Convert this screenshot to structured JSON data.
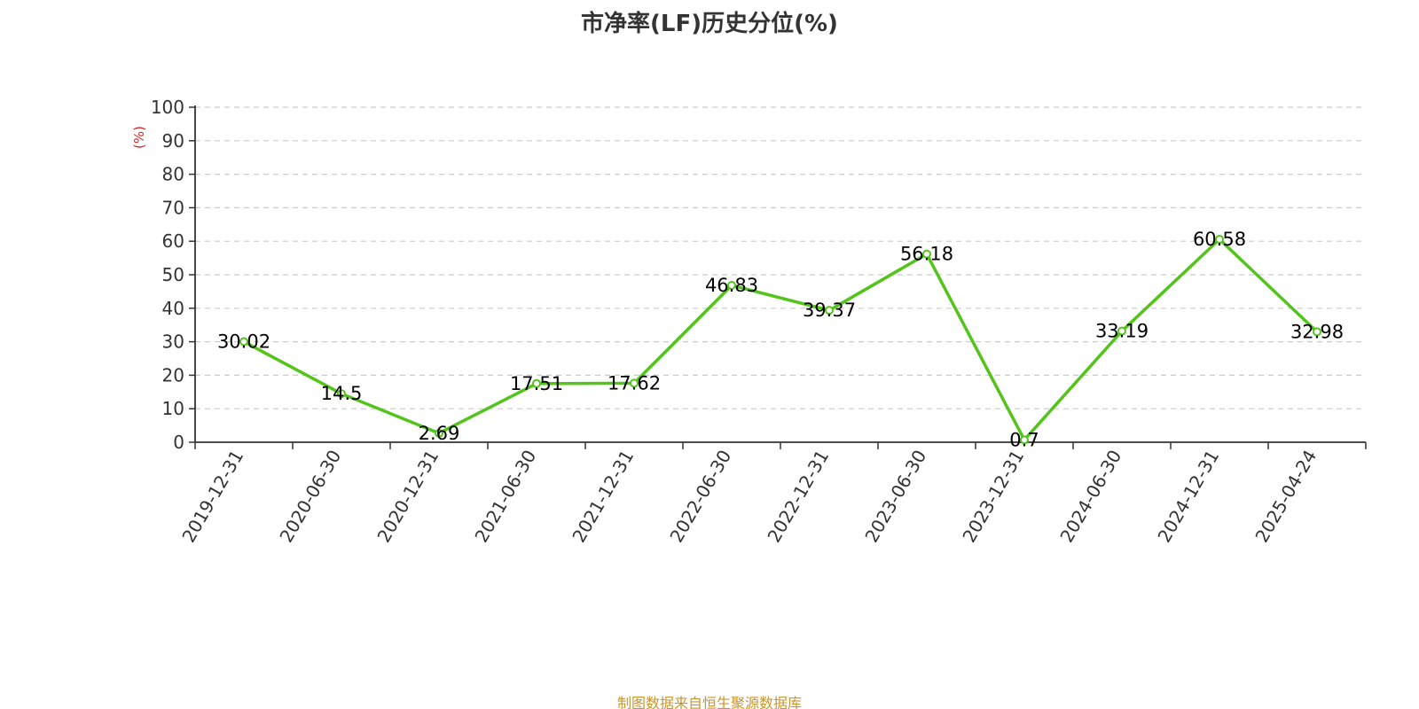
{
  "chart_data": {
    "type": "line",
    "title": "市净率(LF)历史分位(%)",
    "ylabel": "(%)",
    "xlabel": "",
    "ylim": [
      0,
      100
    ],
    "yticks": [
      "0",
      "10",
      "20",
      "30",
      "40",
      "50",
      "60",
      "70",
      "80",
      "90",
      "100"
    ],
    "categories": [
      "2019-12-31",
      "2020-06-30",
      "2020-12-31",
      "2021-06-30",
      "2021-12-31",
      "2022-06-30",
      "2022-12-31",
      "2023-06-30",
      "2023-12-31",
      "2024-06-30",
      "2024-12-31",
      "2025-04-24"
    ],
    "series": [
      {
        "values": [
          30.02,
          14.5,
          2.69,
          17.51,
          17.62,
          46.83,
          39.37,
          56.18,
          0.7,
          33.19,
          60.58,
          32.98
        ],
        "labels": [
          "30.02",
          "14.5",
          "2.69",
          "17.51",
          "17.62",
          "46.83",
          "39.37",
          "56.18",
          "0.7",
          "33.19",
          "60.58",
          "32.98"
        ],
        "color": "#52c41a"
      }
    ],
    "grid": true,
    "grid_style": "dashed",
    "grid_color": "#cccccc"
  },
  "source_note": "制图数据来自恒生聚源数据库"
}
